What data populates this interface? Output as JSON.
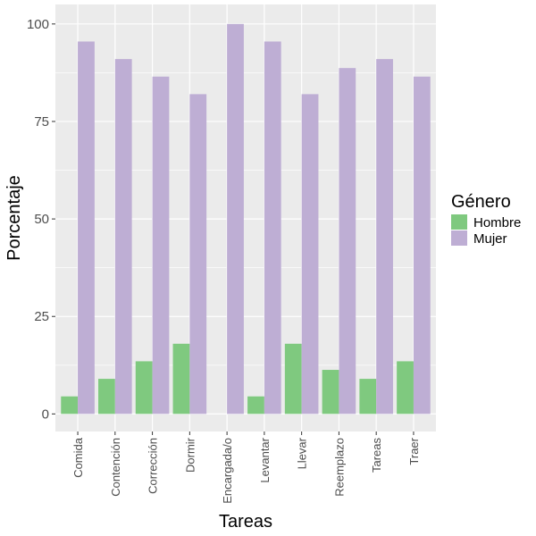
{
  "chart_data": {
    "type": "bar",
    "title": "",
    "xlabel": "Tareas",
    "ylabel": "Porcentaje",
    "categories": [
      "Comida",
      "Contención",
      "Corrección",
      "Dormir",
      "Encargada/o",
      "Levantar",
      "Llevar",
      "Reemplazo",
      "Tareas",
      "Traer"
    ],
    "series": [
      {
        "name": "Hombre",
        "color": "#7fc97f",
        "values": [
          4.5,
          9,
          13.5,
          18,
          0,
          4.5,
          18,
          11.3,
          9,
          13.5
        ]
      },
      {
        "name": "Mujer",
        "color": "#beaed4",
        "values": [
          95.5,
          91,
          86.5,
          82,
          100,
          95.5,
          82,
          88.7,
          91,
          86.5
        ]
      }
    ],
    "ylim": [
      -4.5,
      105
    ],
    "yticks": [
      0,
      25,
      50,
      75,
      100
    ],
    "ytick_labels": [
      "0",
      "25",
      "50",
      "75",
      "100"
    ],
    "legend": {
      "title": "Género",
      "position": "right"
    },
    "grid": true
  }
}
